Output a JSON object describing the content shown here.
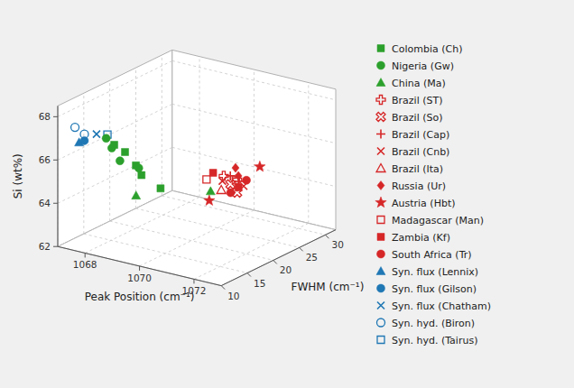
{
  "chart_data": {
    "type": "scatter3d",
    "xlabel": "Peak Position (cm⁻¹)",
    "ylabel": "FWHM (cm⁻¹)",
    "zlabel": "Si (wt%)",
    "xlim": [
      1067,
      1073
    ],
    "ylim": [
      10,
      32
    ],
    "zlim": [
      62,
      68.5
    ],
    "xticks": [
      1068,
      1070,
      1072
    ],
    "yticks": [
      10,
      15,
      20,
      25,
      30
    ],
    "zticks": [
      62,
      64,
      66,
      68
    ],
    "grid": true,
    "legend": "right",
    "series": [
      {
        "name": "Colombia (Ch)",
        "color": "#2ca02c",
        "marker": "square",
        "x": [
          1068.5,
          1068.8,
          1069.2,
          1069.5,
          1070.2
        ],
        "y": [
          13,
          13.5,
          13.5,
          13,
          13
        ],
        "z": [
          66.8,
          66.5,
          66.0,
          65.7,
          65.3
        ]
      },
      {
        "name": "Nigeria (Gw)",
        "color": "#2ca02c",
        "marker": "circle",
        "x": [
          1068.3,
          1068.6,
          1068.9,
          1069.4
        ],
        "y": [
          12.5,
          12,
          12,
          13
        ],
        "z": [
          67.1,
          66.8,
          66.3,
          66.0
        ]
      },
      {
        "name": "China (Ma)",
        "color": "#2ca02c",
        "marker": "triangle",
        "x": [
          1069.3,
          1070.7
        ],
        "y": [
          13,
          20
        ],
        "z": [
          64.7,
          64.5
        ]
      },
      {
        "name": "Brazil (ST)",
        "color": "#d62728",
        "marker": "thick-plus-open",
        "x": [
          1070.8,
          1071.1
        ],
        "y": [
          22,
          23
        ],
        "z": [
          65.0,
          64.8
        ]
      },
      {
        "name": "Brazil (So)",
        "color": "#d62728",
        "marker": "thick-x-open",
        "x": [
          1070.95,
          1071.1
        ],
        "y": [
          22.5,
          23
        ],
        "z": [
          64.6,
          64.2
        ]
      },
      {
        "name": "Brazil (Cap)",
        "color": "#d62728",
        "marker": "plus",
        "x": [
          1070.85,
          1071.05
        ],
        "y": [
          23,
          23.5
        ],
        "z": [
          64.9,
          64.65
        ]
      },
      {
        "name": "Brazil (Cnb)",
        "color": "#d62728",
        "marker": "x",
        "x": [
          1070.75,
          1071.15
        ],
        "y": [
          22,
          24
        ],
        "z": [
          64.75,
          64.4
        ]
      },
      {
        "name": "Brazil (Ita)",
        "color": "#d62728",
        "marker": "triangle-open",
        "x": [
          1070.9
        ],
        "y": [
          21
        ],
        "z": [
          64.5
        ]
      },
      {
        "name": "Russia (Ur)",
        "color": "#d62728",
        "marker": "diamond",
        "x": [
          1070.85,
          1071.05
        ],
        "y": [
          24,
          23.5
        ],
        "z": [
          65.15,
          64.9
        ]
      },
      {
        "name": "Austria (Hbt)",
        "color": "#d62728",
        "marker": "star",
        "x": [
          1071.55,
          1070.65
        ],
        "y": [
          25,
          20
        ],
        "z": [
          65.3,
          64.05
        ]
      },
      {
        "name": "Madagascar (Man)",
        "color": "#d62728",
        "marker": "square-open",
        "x": [
          1070.55,
          1071.05
        ],
        "y": [
          20,
          23
        ],
        "z": [
          65.0,
          64.75
        ]
      },
      {
        "name": "Zambia (Kf)",
        "color": "#d62728",
        "marker": "square",
        "x": [
          1070.6,
          1071.15
        ],
        "y": [
          21,
          23
        ],
        "z": [
          65.2,
          64.45
        ]
      },
      {
        "name": "South Africa (Tr)",
        "color": "#d62728",
        "marker": "circle",
        "x": [
          1071.25,
          1071.05
        ],
        "y": [
          24,
          22
        ],
        "z": [
          64.7,
          64.3
        ]
      },
      {
        "name": "Syn. flux (Lennix)",
        "color": "#1f77b4",
        "marker": "triangle",
        "x": [
          1067.4
        ],
        "y": [
          12
        ],
        "z": [
          66.7
        ]
      },
      {
        "name": "Syn. flux (Gilson)",
        "color": "#1f77b4",
        "marker": "circle",
        "x": [
          1067.5
        ],
        "y": [
          12.5
        ],
        "z": [
          66.75
        ]
      },
      {
        "name": "Syn. flux (Chatham)",
        "color": "#1f77b4",
        "marker": "x",
        "x": [
          1067.85
        ],
        "y": [
          13
        ],
        "z": [
          67.1
        ]
      },
      {
        "name": "Syn. hyd. (Biron)",
        "color": "#1f77b4",
        "marker": "circle-open",
        "x": [
          1067.25,
          1067.5
        ],
        "y": [
          12,
          12.5
        ],
        "z": [
          67.35,
          67.05
        ]
      },
      {
        "name": "Syn. hyd. (Tairus)",
        "color": "#1f77b4",
        "marker": "square-open",
        "x": [
          1068.25
        ],
        "y": [
          13
        ],
        "z": [
          67.2
        ]
      }
    ]
  }
}
